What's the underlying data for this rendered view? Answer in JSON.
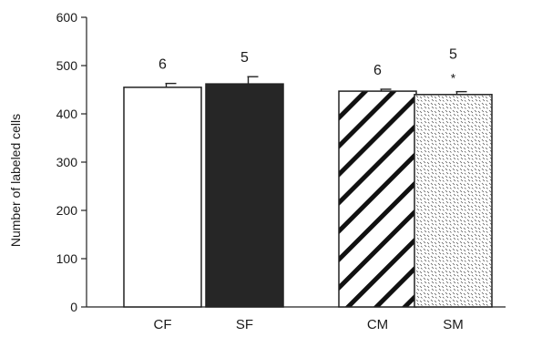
{
  "chart_data": {
    "type": "bar",
    "title": "",
    "xlabel": "",
    "ylabel": "Number of labeled cells",
    "ylim": [
      0,
      600
    ],
    "yticks": [
      0,
      100,
      200,
      300,
      400,
      500,
      600
    ],
    "categories": [
      "CF",
      "SF",
      "CM",
      "SM"
    ],
    "values": [
      455,
      462,
      447,
      440
    ],
    "errors": [
      8,
      15,
      4,
      6
    ],
    "n_labels": [
      "6",
      "5",
      "6",
      "5"
    ],
    "significance": [
      "",
      "",
      "",
      "*"
    ],
    "fills": [
      "white",
      "solid-black",
      "diagonal-hatch",
      "dotted-speckle"
    ],
    "grid": false,
    "legend": "none"
  }
}
